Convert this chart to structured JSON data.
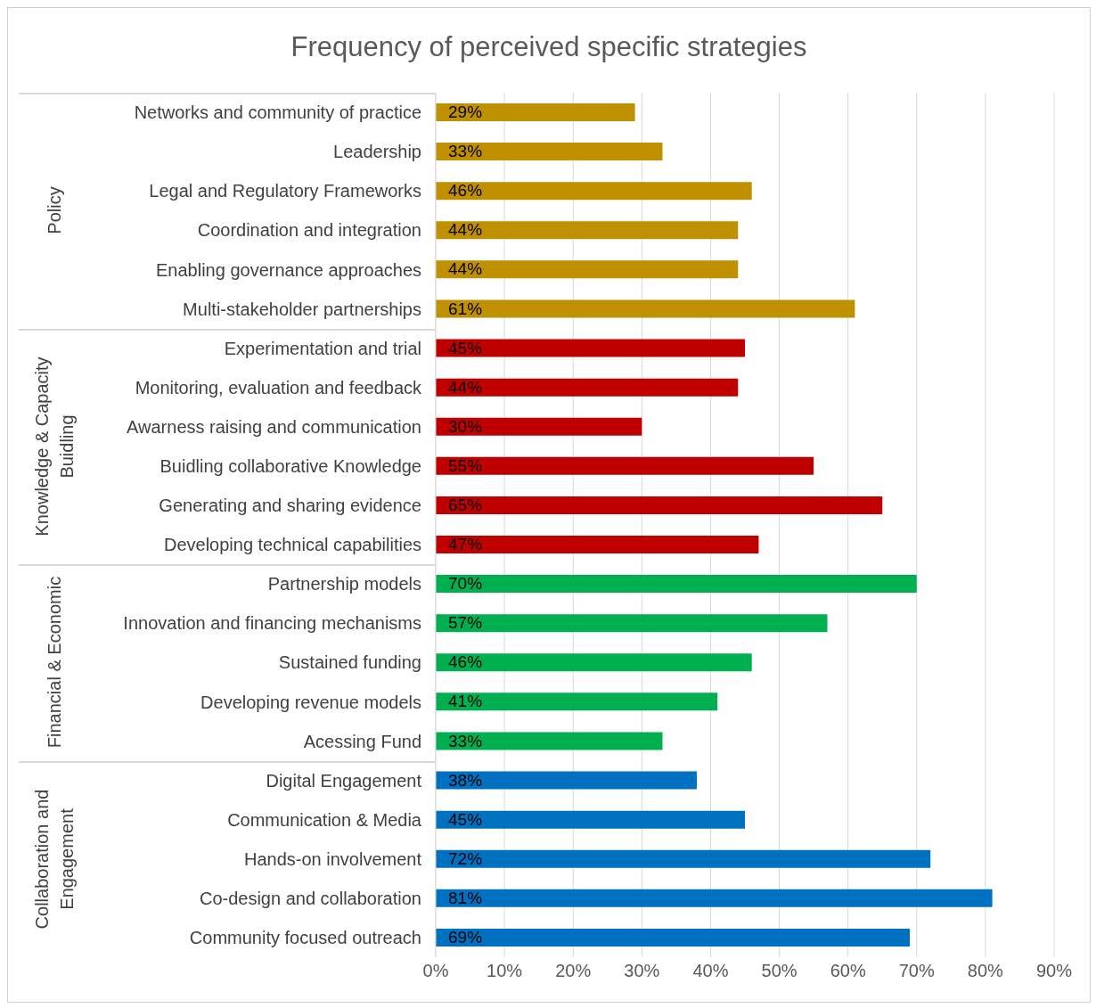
{
  "chart_data": {
    "type": "bar",
    "orientation": "horizontal",
    "stacked": true,
    "title": "Frequency of perceived specific strategies",
    "categories": [
      "Networks and community of practice",
      "Leadership",
      "Legal and Regulatory Frameworks",
      "Coordination and integration",
      "Enabling governance approaches",
      "Multi-stakeholder partnerships",
      "Experimentation and trial",
      "Monitoring, evaluation and feedback",
      "Awarness raising and communication",
      "Buidling collaborative Knowledge",
      "Generating and sharing evidence",
      "Developing technical capabilities",
      "Partnership models",
      "Innovation and financing mechanisms",
      "Sustained funding",
      "Developing revenue models",
      "Acessing Fund",
      "Digital Engagement",
      "Communication & Media",
      "Hands-on involvement",
      "Co-design and collaboration",
      "Community focused outreach"
    ],
    "series": [
      {
        "color": "#bf9000",
        "values": [
          29,
          33,
          46,
          44,
          44,
          61,
          null,
          null,
          null,
          null,
          null,
          null,
          null,
          null,
          null,
          null,
          null,
          null,
          null,
          null,
          null,
          null
        ],
        "value_labels": [
          "29%",
          "33%",
          "46%",
          "44%",
          "44%",
          "61%",
          null,
          null,
          null,
          null,
          null,
          null,
          null,
          null,
          null,
          null,
          null,
          null,
          null,
          null,
          null,
          null
        ]
      },
      {
        "color": "#c00000",
        "values": [
          null,
          null,
          null,
          null,
          null,
          null,
          45,
          44,
          30,
          55,
          65,
          47,
          null,
          null,
          null,
          null,
          null,
          null,
          null,
          null,
          null,
          null
        ],
        "value_labels": [
          null,
          null,
          null,
          null,
          null,
          null,
          "45%",
          "44%",
          "30%",
          "55%",
          "65%",
          "47%",
          null,
          null,
          null,
          null,
          null,
          null,
          null,
          null,
          null,
          null
        ]
      },
      {
        "color": "#00b050",
        "values": [
          null,
          null,
          null,
          null,
          null,
          null,
          null,
          null,
          null,
          null,
          null,
          null,
          70,
          57,
          46,
          41,
          33,
          null,
          null,
          null,
          null,
          null
        ],
        "value_labels": [
          null,
          null,
          null,
          null,
          null,
          null,
          null,
          null,
          null,
          null,
          null,
          null,
          "70%",
          "57%",
          "46%",
          "41%",
          "33%",
          null,
          null,
          null,
          null,
          null
        ]
      },
      {
        "color": "#0070c0",
        "values": [
          null,
          null,
          null,
          null,
          null,
          null,
          null,
          null,
          null,
          null,
          null,
          null,
          null,
          null,
          null,
          null,
          null,
          38,
          45,
          72,
          81,
          69
        ],
        "value_labels": [
          null,
          null,
          null,
          null,
          null,
          null,
          null,
          null,
          null,
          null,
          null,
          null,
          null,
          null,
          null,
          null,
          null,
          "38%",
          "45%",
          "72%",
          "81%",
          "69%"
        ]
      }
    ],
    "xlim": [
      0,
      90
    ],
    "xticks": [
      {
        "value": 0,
        "label": "0%"
      },
      {
        "value": 10,
        "label": "10%"
      },
      {
        "value": 20,
        "label": "20%"
      },
      {
        "value": 30,
        "label": "30%"
      },
      {
        "value": 40,
        "label": "40%"
      },
      {
        "value": 50,
        "label": "50%"
      },
      {
        "value": 60,
        "label": "60%"
      },
      {
        "value": 70,
        "label": "70%"
      },
      {
        "value": 80,
        "label": "80%"
      },
      {
        "value": 90,
        "label": "90%"
      }
    ],
    "grid": "x",
    "annotations": [
      "Policy",
      "Knowledge & Capacity Buidling",
      "Financial & Economic",
      "Collaboration and Engagement"
    ]
  }
}
